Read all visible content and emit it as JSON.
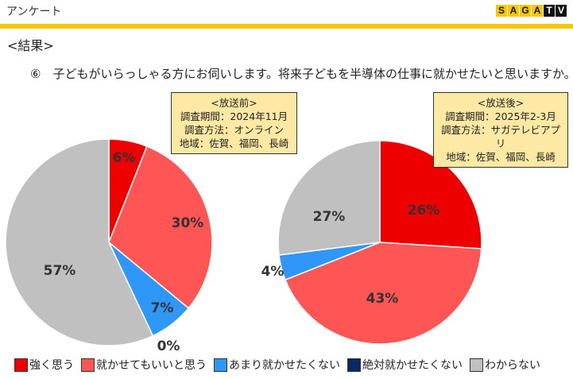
{
  "header": {
    "title": "アンケート",
    "logo_letters": [
      "S",
      "A",
      "G",
      "A",
      "T",
      "V"
    ]
  },
  "section_title": "<結果>",
  "question": "⑥　子どもがいらっしゃる方にお伺いします。将来子どもを半導体の仕事に就かせたいと思いますか。",
  "colors": {
    "strongly": "#ee0000",
    "fine": "#ff5555",
    "not_much": "#2f97f7",
    "never": "#0b2866",
    "unknown": "#c0c0c0",
    "accent": "#f6c600",
    "box_bg": "#fde9a3"
  },
  "chart_data": [
    {
      "type": "pie",
      "panel": "before",
      "box": [
        "<放送前>",
        "調査期間：2024年11月",
        "調査方法：オンライン",
        "地域：佐賀、福岡、長崎"
      ],
      "categories": [
        "強く思う",
        "就かせてもいいと思う",
        "あまり就かせたくない",
        "絶対就かせたくない",
        "わからない"
      ],
      "values": [
        6,
        30,
        7,
        0,
        57
      ],
      "labels": [
        "6%",
        "30%",
        "7%",
        "0%",
        "57%"
      ]
    },
    {
      "type": "pie",
      "panel": "after",
      "box": [
        "<放送後>",
        "調査期間：2025年2-3月",
        "調査方法：サガテレビアプリ",
        "地域：佐賀、福岡、長崎"
      ],
      "categories": [
        "強く思う",
        "就かせてもいいと思う",
        "あまり就かせたくない",
        "絶対就かせたくない",
        "わからない"
      ],
      "values": [
        26,
        43,
        4,
        0,
        27
      ],
      "labels": [
        "26%",
        "43%",
        "4%",
        "",
        "27%"
      ]
    }
  ],
  "legend": [
    {
      "label": "強く思う",
      "color": "#ee0000"
    },
    {
      "label": "就かせてもいいと思う",
      "color": "#ff5555"
    },
    {
      "label": "あまり就かせたくない",
      "color": "#2f97f7"
    },
    {
      "label": "絶対就かせたくない",
      "color": "#0b2866"
    },
    {
      "label": "わからない",
      "color": "#c0c0c0"
    }
  ]
}
